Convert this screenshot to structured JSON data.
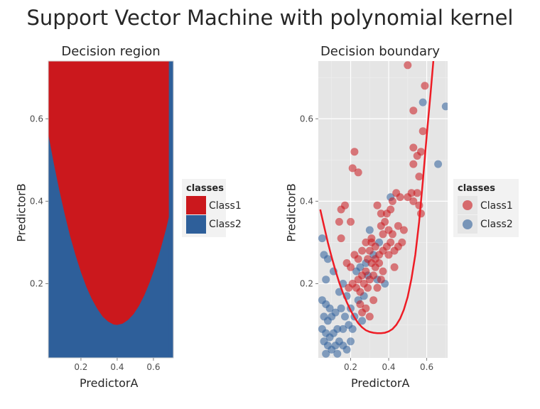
{
  "title": "Support Vector Machine with polynomial kernel",
  "colors": {
    "class1": "#CB181D",
    "class2": "#2E5F9A",
    "boundary": "#EE1C25",
    "panel_bg": "#E5E5E5",
    "grid": "#FFFFFF"
  },
  "chart_data": [
    {
      "type": "heatmap",
      "title": "Decision region",
      "xlabel": "PredictorA",
      "ylabel": "PredictorB",
      "xlim": [
        0.02,
        0.71
      ],
      "ylim": [
        0.02,
        0.74
      ],
      "xticks": [
        "0.2",
        "0.4",
        "0.6"
      ],
      "xtick_values": [
        0.2,
        0.4,
        0.6
      ],
      "yticks": [
        "0.2",
        "0.4",
        "0.6"
      ],
      "ytick_values": [
        0.2,
        0.4,
        0.6
      ],
      "legend": {
        "title": "classes",
        "items": [
          "Class1",
          "Class2"
        ],
        "position": "right"
      },
      "region": {
        "description_of_boundary": "parabola y = 0.1 + 3.2*(x-0.4)^2",
        "boundary_points": [
          [
            0.02,
            0.562
          ],
          [
            0.05,
            0.492
          ],
          [
            0.08,
            0.428
          ],
          [
            0.11,
            0.369
          ],
          [
            0.14,
            0.316
          ],
          [
            0.17,
            0.269
          ],
          [
            0.2,
            0.228
          ],
          [
            0.23,
            0.192
          ],
          [
            0.26,
            0.163
          ],
          [
            0.29,
            0.139
          ],
          [
            0.32,
            0.12
          ],
          [
            0.35,
            0.108
          ],
          [
            0.38,
            0.101
          ],
          [
            0.4,
            0.1
          ],
          [
            0.43,
            0.103
          ],
          [
            0.46,
            0.112
          ],
          [
            0.49,
            0.126
          ],
          [
            0.52,
            0.146
          ],
          [
            0.55,
            0.172
          ],
          [
            0.58,
            0.204
          ],
          [
            0.61,
            0.241
          ],
          [
            0.64,
            0.284
          ],
          [
            0.67,
            0.333
          ],
          [
            0.71,
            0.408
          ]
        ]
      }
    },
    {
      "type": "scatter",
      "title": "Decision boundary",
      "xlabel": "PredictorA",
      "ylabel": "PredictorB",
      "xlim": [
        0.03,
        0.71
      ],
      "ylim": [
        0.02,
        0.74
      ],
      "grid": true,
      "xticks": [
        "0.2",
        "0.4",
        "0.6"
      ],
      "xtick_values": [
        0.2,
        0.4,
        0.6
      ],
      "yticks": [
        "0.2",
        "0.4",
        "0.6"
      ],
      "ytick_values": [
        0.2,
        0.4,
        0.6
      ],
      "legend": {
        "title": "classes",
        "items": [
          "Class1",
          "Class2"
        ],
        "position": "right"
      },
      "boundary": [
        [
          0.04,
          0.38
        ],
        [
          0.06,
          0.34
        ],
        [
          0.08,
          0.3
        ],
        [
          0.1,
          0.265
        ],
        [
          0.12,
          0.232
        ],
        [
          0.14,
          0.203
        ],
        [
          0.16,
          0.177
        ],
        [
          0.18,
          0.155
        ],
        [
          0.2,
          0.135
        ],
        [
          0.22,
          0.118
        ],
        [
          0.24,
          0.104
        ],
        [
          0.26,
          0.094
        ],
        [
          0.28,
          0.087
        ],
        [
          0.3,
          0.083
        ],
        [
          0.32,
          0.081
        ],
        [
          0.34,
          0.08
        ],
        [
          0.36,
          0.08
        ],
        [
          0.38,
          0.081
        ],
        [
          0.4,
          0.084
        ],
        [
          0.42,
          0.09
        ],
        [
          0.44,
          0.1
        ],
        [
          0.46,
          0.115
        ],
        [
          0.48,
          0.137
        ],
        [
          0.5,
          0.168
        ],
        [
          0.52,
          0.212
        ],
        [
          0.54,
          0.27
        ],
        [
          0.56,
          0.35
        ],
        [
          0.58,
          0.45
        ],
        [
          0.6,
          0.56
        ],
        [
          0.62,
          0.66
        ],
        [
          0.635,
          0.74
        ]
      ],
      "series": [
        {
          "name": "Class1",
          "points": [
            [
              0.5,
              0.73
            ],
            [
              0.59,
              0.68
            ],
            [
              0.53,
              0.62
            ],
            [
              0.58,
              0.57
            ],
            [
              0.57,
              0.52
            ],
            [
              0.53,
              0.53
            ],
            [
              0.55,
              0.51
            ],
            [
              0.56,
              0.46
            ],
            [
              0.53,
              0.49
            ],
            [
              0.55,
              0.42
            ],
            [
              0.52,
              0.42
            ],
            [
              0.5,
              0.41
            ],
            [
              0.46,
              0.41
            ],
            [
              0.44,
              0.42
            ],
            [
              0.53,
              0.4
            ],
            [
              0.56,
              0.39
            ],
            [
              0.57,
              0.37
            ],
            [
              0.42,
              0.4
            ],
            [
              0.41,
              0.38
            ],
            [
              0.39,
              0.37
            ],
            [
              0.38,
              0.35
            ],
            [
              0.36,
              0.34
            ],
            [
              0.37,
              0.32
            ],
            [
              0.4,
              0.33
            ],
            [
              0.42,
              0.32
            ],
            [
              0.45,
              0.34
            ],
            [
              0.48,
              0.33
            ],
            [
              0.47,
              0.3
            ],
            [
              0.45,
              0.29
            ],
            [
              0.43,
              0.28
            ],
            [
              0.41,
              0.3
            ],
            [
              0.39,
              0.29
            ],
            [
              0.37,
              0.28
            ],
            [
              0.35,
              0.27
            ],
            [
              0.33,
              0.29
            ],
            [
              0.31,
              0.3
            ],
            [
              0.3,
              0.28
            ],
            [
              0.29,
              0.26
            ],
            [
              0.31,
              0.25
            ],
            [
              0.33,
              0.24
            ],
            [
              0.35,
              0.25
            ],
            [
              0.37,
              0.23
            ],
            [
              0.32,
              0.22
            ],
            [
              0.3,
              0.21
            ],
            [
              0.28,
              0.23
            ],
            [
              0.26,
              0.22
            ],
            [
              0.24,
              0.21
            ],
            [
              0.27,
              0.2
            ],
            [
              0.29,
              0.19
            ],
            [
              0.25,
              0.18
            ],
            [
              0.23,
              0.19
            ],
            [
              0.21,
              0.2
            ],
            [
              0.2,
              0.24
            ],
            [
              0.18,
              0.25
            ],
            [
              0.15,
              0.31
            ],
            [
              0.14,
              0.35
            ],
            [
              0.2,
              0.35
            ],
            [
              0.15,
              0.38
            ],
            [
              0.17,
              0.39
            ],
            [
              0.21,
              0.48
            ],
            [
              0.24,
              0.47
            ],
            [
              0.22,
              0.52
            ],
            [
              0.36,
              0.37
            ],
            [
              0.34,
              0.39
            ],
            [
              0.31,
              0.31
            ],
            [
              0.28,
              0.3
            ],
            [
              0.26,
              0.28
            ],
            [
              0.24,
              0.26
            ],
            [
              0.22,
              0.27
            ],
            [
              0.32,
              0.16
            ],
            [
              0.28,
              0.14
            ],
            [
              0.26,
              0.13
            ],
            [
              0.3,
              0.12
            ],
            [
              0.34,
              0.19
            ],
            [
              0.36,
              0.21
            ],
            [
              0.25,
              0.15
            ],
            [
              0.19,
              0.19
            ],
            [
              0.4,
              0.27
            ],
            [
              0.43,
              0.24
            ],
            [
              0.33,
              0.26
            ]
          ]
        },
        {
          "name": "Class2",
          "points": [
            [
              0.7,
              0.63
            ],
            [
              0.58,
              0.64
            ],
            [
              0.66,
              0.49
            ],
            [
              0.41,
              0.41
            ],
            [
              0.05,
              0.31
            ],
            [
              0.06,
              0.27
            ],
            [
              0.08,
              0.26
            ],
            [
              0.11,
              0.23
            ],
            [
              0.07,
              0.21
            ],
            [
              0.05,
              0.16
            ],
            [
              0.07,
              0.15
            ],
            [
              0.09,
              0.14
            ],
            [
              0.06,
              0.12
            ],
            [
              0.08,
              0.11
            ],
            [
              0.1,
              0.12
            ],
            [
              0.12,
              0.13
            ],
            [
              0.05,
              0.09
            ],
            [
              0.07,
              0.08
            ],
            [
              0.09,
              0.07
            ],
            [
              0.11,
              0.08
            ],
            [
              0.13,
              0.09
            ],
            [
              0.06,
              0.06
            ],
            [
              0.08,
              0.05
            ],
            [
              0.1,
              0.04
            ],
            [
              0.12,
              0.05
            ],
            [
              0.14,
              0.06
            ],
            [
              0.16,
              0.05
            ],
            [
              0.18,
              0.04
            ],
            [
              0.2,
              0.06
            ],
            [
              0.13,
              0.03
            ],
            [
              0.07,
              0.03
            ],
            [
              0.16,
              0.09
            ],
            [
              0.17,
              0.12
            ],
            [
              0.15,
              0.14
            ],
            [
              0.18,
              0.17
            ],
            [
              0.16,
              0.2
            ],
            [
              0.14,
              0.18
            ],
            [
              0.2,
              0.14
            ],
            [
              0.22,
              0.12
            ],
            [
              0.24,
              0.16
            ],
            [
              0.27,
              0.17
            ],
            [
              0.29,
              0.22
            ],
            [
              0.32,
              0.27
            ],
            [
              0.35,
              0.3
            ],
            [
              0.3,
              0.33
            ],
            [
              0.28,
              0.25
            ],
            [
              0.25,
              0.24
            ],
            [
              0.23,
              0.23
            ],
            [
              0.34,
              0.21
            ],
            [
              0.38,
              0.2
            ],
            [
              0.19,
              0.1
            ],
            [
              0.21,
              0.09
            ],
            [
              0.26,
              0.11
            ]
          ]
        }
      ]
    }
  ]
}
